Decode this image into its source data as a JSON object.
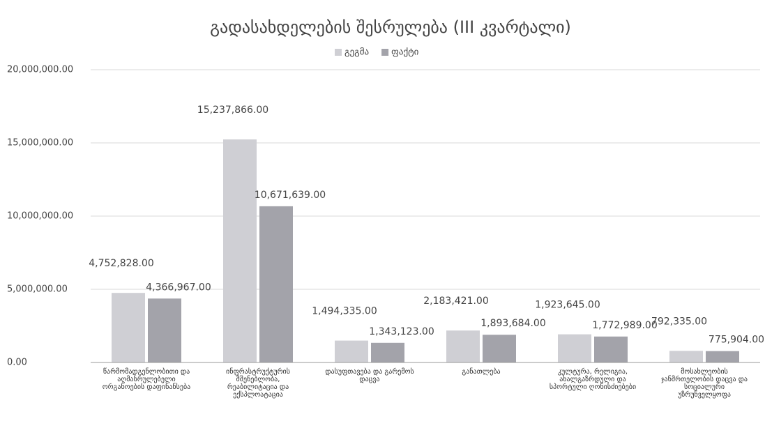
{
  "chart_data": {
    "type": "bar",
    "title": "გადასახდელების შესრულება (III კვარტალი)",
    "categories": [
      "წარმომადგენლობითი და აღმასრულებელი ორგანოების დაფინანსება",
      "ინფრასტრუქტურის მშენებლობა, რეაბილიტაცია და ექსპლოატაცია",
      "დასუფთავება და გარემოს დაცვა",
      "განათლება",
      "კულტურა, რელიგია, ახალგაზრდული და სპორტული ღონისძიებები",
      "მოსახლეობის ჯანმრთელობის დაცვა და სოციალური უზრუნველყოფა"
    ],
    "series": [
      {
        "name": "გეგმა",
        "color": "#cfcfd4",
        "values": [
          4752828,
          15237866,
          1494335,
          2183421,
          1923645,
          792335
        ],
        "value_labels": [
          "4,752,828.00",
          "15,237,866.00",
          "1,494,335.00",
          "2,183,421.00",
          "1,923,645.00",
          "792,335.00"
        ]
      },
      {
        "name": "ფაქტი",
        "color": "#a3a3aa",
        "values": [
          4366967,
          10671639,
          1343123,
          1893684,
          1772989,
          775904
        ],
        "value_labels": [
          "4,366,967.00",
          "10,671,639.00",
          "1,343,123.00",
          "1,893,684.00",
          "1,772,989.00",
          "775,904.00"
        ]
      }
    ],
    "ylim": [
      0,
      20000000
    ],
    "yticks": [
      {
        "value": 0,
        "label": "0.00"
      },
      {
        "value": 5000000,
        "label": "5,000,000.00"
      },
      {
        "value": 10000000,
        "label": "10,000,000.00"
      },
      {
        "value": 15000000,
        "label": "15,000,000.00"
      },
      {
        "value": 20000000,
        "label": "20,000,000.00"
      }
    ],
    "grid": true,
    "legend": "top"
  }
}
